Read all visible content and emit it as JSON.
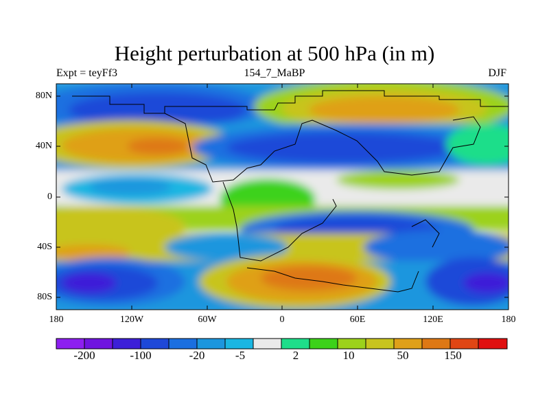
{
  "title": "Height perturbation at 500 hPa (in m)",
  "subtitle_left": "Expt = teyFf3",
  "subtitle_center": "154_7_MaBP",
  "subtitle_right": "DJF",
  "lat_labels": [
    "80N",
    "40N",
    "0",
    "40S",
    "80S"
  ],
  "lon_labels": [
    "180",
    "120W",
    "60W",
    "0",
    "60E",
    "120E",
    "180"
  ],
  "colorbar_labels": [
    "-200",
    "-100",
    "-20",
    "-5",
    "2",
    "10",
    "50",
    "150"
  ],
  "colors": {
    "purple": "#8d1ff0",
    "violet": "#6f14e0",
    "indigo": "#3c1fd8",
    "blue": "#1e48d8",
    "mid_blue": "#1b6fe0",
    "sky": "#1c96de",
    "cyan": "#1ab6e2",
    "white": "#eaeaea",
    "teal": "#1ede8a",
    "green": "#3cd21a",
    "lime": "#9cd21c",
    "olive": "#c8c41e",
    "gold": "#dfa019",
    "orange": "#de7814",
    "red_orange": "#e04614",
    "red": "#e01010"
  }
}
